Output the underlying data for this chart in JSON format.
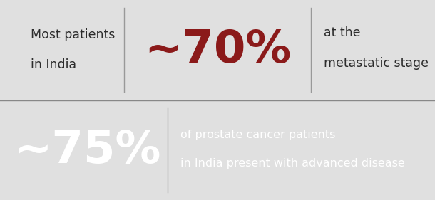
{
  "top_bg_color": "#e0e0e0",
  "bottom_bg_color": "#808080",
  "top_left_text_line1": "Most patients",
  "top_left_text_line2": "in India",
  "top_left_text_color": "#2c2c2c",
  "top_stat": "~70%",
  "top_stat_color": "#8b1a1a",
  "top_right_text_line1": "at the",
  "top_right_text_line2": "metastatic stage",
  "top_right_text_color": "#2c2c2c",
  "bottom_stat": "~75%",
  "bottom_stat_color": "#ffffff",
  "bottom_right_line1": "of prostate cancer patients",
  "bottom_right_line2": "in India present with advanced disease",
  "bottom_right_text_color": "#ffffff",
  "divider_color_top": "#999999",
  "divider_color_bottom": "#aaaaaa",
  "fig_width": 6.1,
  "fig_height": 2.81
}
